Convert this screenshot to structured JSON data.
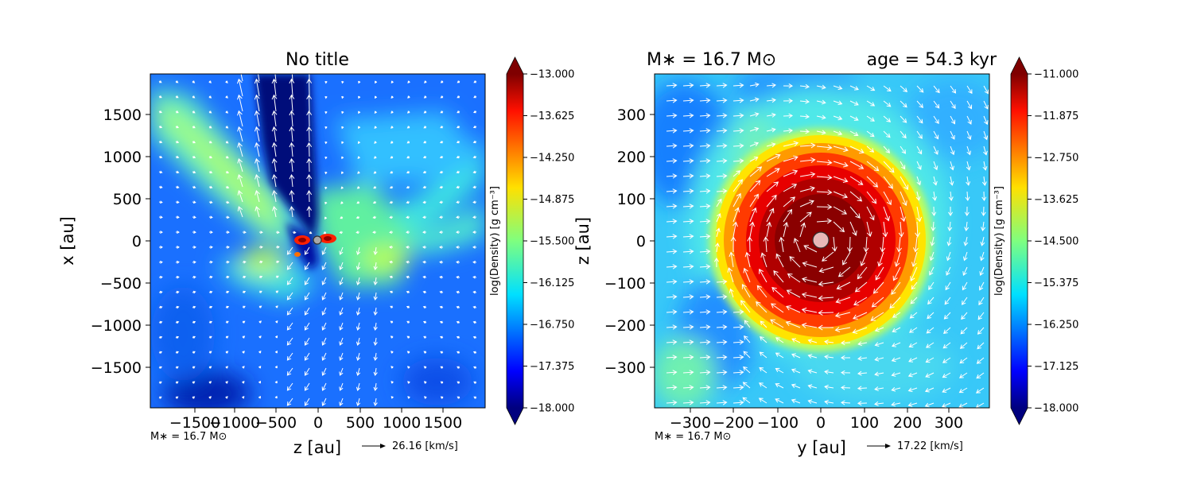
{
  "chart_data": [
    {
      "type": "heatmap",
      "title": "No title",
      "xlabel": "z [au]",
      "ylabel": "x [au]",
      "xlim": [
        -1900,
        1950
      ],
      "ylim": [
        -1950,
        1950
      ],
      "x_ticks": [
        -1500,
        -1000,
        -500,
        0,
        500,
        1000,
        1500
      ],
      "y_ticks": [
        -1500,
        -1000,
        -500,
        0,
        500,
        1000,
        1500
      ],
      "x_tick_labels": [
        "−1500",
        "−1000",
        "−500",
        "0",
        "500",
        "1000",
        "1500"
      ],
      "y_tick_labels": [
        "−1500",
        "−1000",
        "−500",
        "0",
        "500",
        "1000",
        "1500"
      ],
      "colorbar": {
        "label": "log(Density) [g cm⁻³]",
        "range": [
          -18.0,
          -13.0
        ],
        "colormap": "jet",
        "ticks": [
          -18.0,
          -17.375,
          -16.75,
          -16.125,
          -15.5,
          -14.875,
          -14.25,
          -13.625,
          -13.0
        ],
        "tick_labels": [
          "−18.000",
          "−17.375",
          "−16.750",
          "−16.125",
          "−15.500",
          "−14.875",
          "−14.250",
          "−13.625",
          "−13.000"
        ]
      },
      "mass_annotation": "M∗ = 16.7 M⊙",
      "velocity_key": "26.16 [km/s]"
    },
    {
      "type": "heatmap",
      "title_left": "M∗ = 16.7 M⊙",
      "title_right": "age = 54.3 kyr",
      "xlabel": "y [au]",
      "ylabel": "z [au]",
      "xlim": [
        -380,
        395
      ],
      "ylim": [
        -390,
        390
      ],
      "x_ticks": [
        -300,
        -200,
        -100,
        0,
        100,
        200,
        300
      ],
      "y_ticks": [
        -300,
        -200,
        -100,
        0,
        100,
        200,
        300
      ],
      "x_tick_labels": [
        "−300",
        "−200",
        "−100",
        "0",
        "100",
        "200",
        "300"
      ],
      "y_tick_labels": [
        "−300",
        "−200",
        "−100",
        "0",
        "100",
        "200",
        "300"
      ],
      "colorbar": {
        "label": "log(Density) [g cm⁻³]",
        "range": [
          -18.0,
          -11.0
        ],
        "colormap": "jet",
        "ticks": [
          -18.0,
          -17.125,
          -16.25,
          -15.375,
          -14.5,
          -13.625,
          -12.75,
          -11.875,
          -11.0
        ],
        "tick_labels": [
          "−18.000",
          "−17.125",
          "−16.250",
          "−15.375",
          "−14.500",
          "−13.625",
          "−12.750",
          "−11.875",
          "−11.000"
        ]
      },
      "mass_annotation": "M∗ = 16.7 M⊙",
      "velocity_key": "17.22 [km/s]"
    }
  ]
}
